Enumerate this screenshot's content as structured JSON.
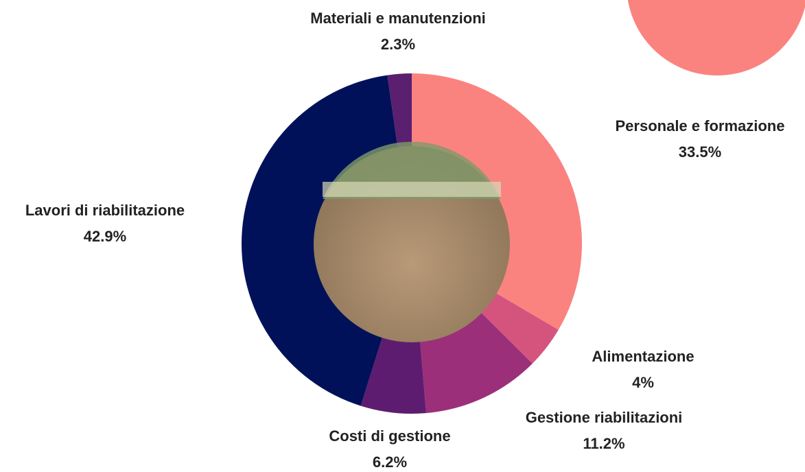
{
  "chart_data": {
    "type": "pie",
    "categories": [
      "Personale e formazione",
      "Alimentazione",
      "Gestione riabilitazioni",
      "Costi di gestione",
      "Lavori di riabilitazione",
      "Materiali e manutenzioni"
    ],
    "values": [
      33.5,
      4,
      11.2,
      6.2,
      42.9,
      2.3
    ],
    "value_labels": [
      "33.5%",
      "4%",
      "11.2%",
      "6.2%",
      "42.9%",
      "2.3%"
    ],
    "colors": [
      "#fa8380",
      "#d4547e",
      "#9b2f7a",
      "#5e1c70",
      "#001159",
      "#5a1f6e"
    ]
  }
}
